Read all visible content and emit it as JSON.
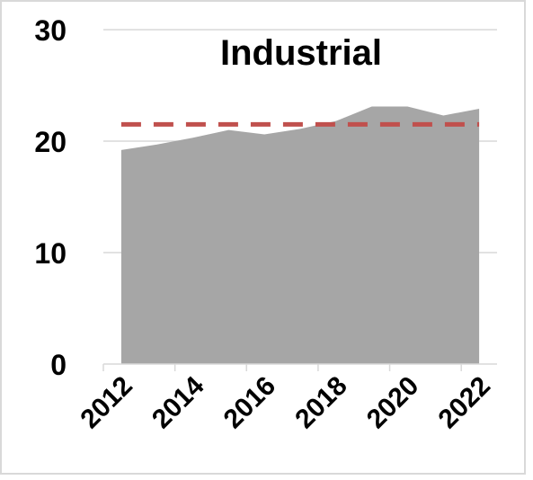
{
  "chart_data": {
    "type": "area",
    "title": "Industrial",
    "x": [
      2012,
      2013,
      2014,
      2015,
      2016,
      2017,
      2018,
      2019,
      2020,
      2021,
      2022
    ],
    "series": [
      {
        "values": [
          19.2,
          19.7,
          20.3,
          21.0,
          20.6,
          21.1,
          21.8,
          23.1,
          23.1,
          22.3,
          22.9
        ],
        "color": "#a6a6a6"
      }
    ],
    "reference_line": {
      "value": 21.5,
      "style": "dashed",
      "color": "#c0504d"
    },
    "xticks": [
      "2012",
      "2014",
      "2016",
      "2018",
      "2020",
      "2022"
    ],
    "yticks": [
      "0",
      "10",
      "20",
      "30"
    ],
    "ylim": [
      0,
      30
    ],
    "grid": true,
    "legend": "none"
  }
}
